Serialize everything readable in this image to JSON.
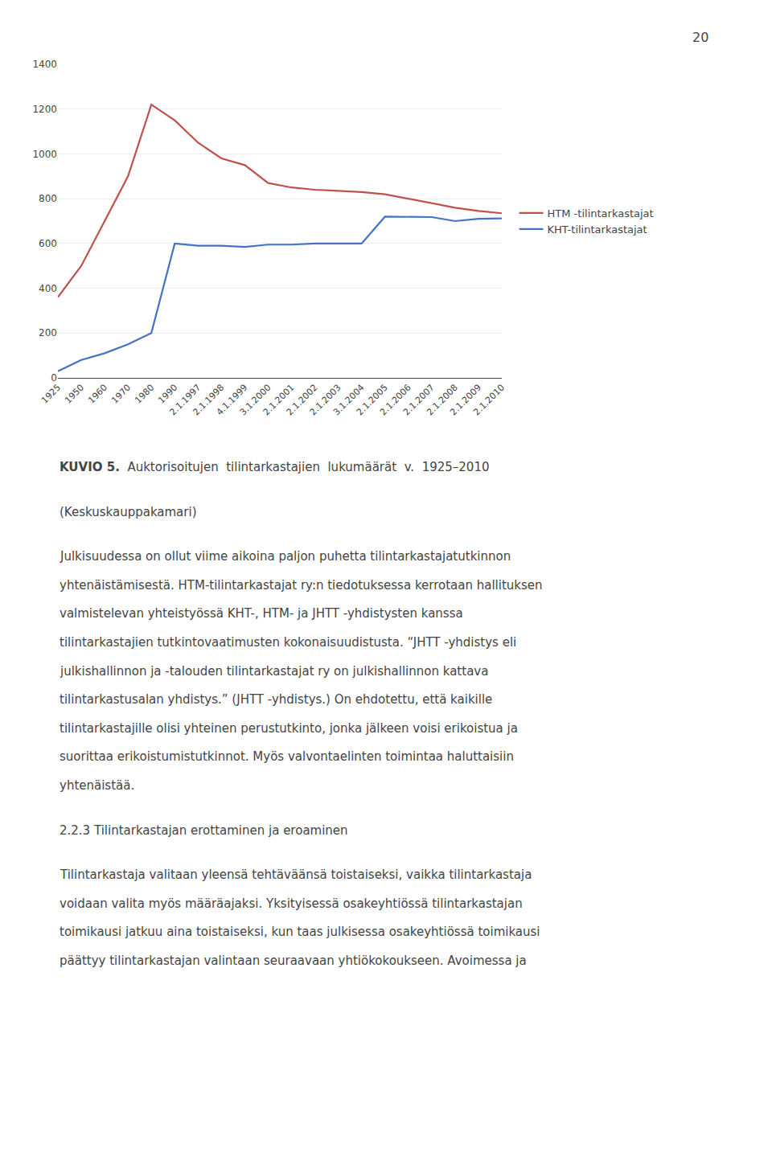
{
  "chart_data": {
    "type": "line",
    "categories": [
      "1925",
      "1950",
      "1960",
      "1970",
      "1980",
      "1990",
      "2.1.1997",
      "2.1.1998",
      "4.1.1999",
      "3.1.2000",
      "2.1.2001",
      "2.1.2002",
      "2.1.2003",
      "3.1.2004",
      "2.1.2005",
      "2.1.2006",
      "2.1.2007",
      "2.1.2008",
      "2.1.2009",
      "2.1.2010"
    ],
    "series": [
      {
        "name": "HTM -tilintarkastajat",
        "color": "#C0504D",
        "values": [
          360,
          500,
          700,
          900,
          1220,
          1150,
          1050,
          980,
          950,
          870,
          850,
          840,
          835,
          830,
          820,
          800,
          780,
          760,
          745,
          735
        ]
      },
      {
        "name": "KHT-tilintarkastajat",
        "color": "#4472C4",
        "values": [
          30,
          80,
          110,
          150,
          200,
          600,
          590,
          590,
          585,
          595,
          595,
          600,
          600,
          600,
          720,
          720,
          718,
          700,
          710,
          712
        ]
      }
    ],
    "ylim": [
      0,
      1400
    ],
    "yticks": [
      0,
      200,
      400,
      600,
      800,
      1000,
      1200,
      1400
    ],
    "grid": true,
    "legend": "right",
    "annotations": [
      [
        "20"
      ],
      [
        "KUVIO 5.",
        "  Auktorisoitujen  tilintarkastajien  lukumäärät  v.  1925–2010"
      ],
      [
        "(Keskuskauppakamari)"
      ],
      [
        "Julkisuudessa on ollut viime aikoina paljon puhetta tilintarkastajatutkinnon",
        "yhtenäistämisestä. HTM-tilintarkastajat ry:n tiedotuksessa kerrotaan hallituksen",
        "valmistelevan yhteistyössä KHT-, HTM- ja JHTT -yhdistysten kanssa",
        "tilintarkastajien tutkintovaatimusten kokonaisuudistusta. “JHTT -yhdistys eli",
        "julkishallinnon ja -talouden tilintarkastajat ry on julkishallinnon kattava",
        "tilintarkastusalan yhdistys.” (JHTT -yhdistys.) On ehdotettu, että kaikille",
        "tilintarkastajille olisi yhteinen perustutkinto, jonka jälkeen voisi erikoistua ja",
        "suorittaa erikoistumistutkinnot. Myös valvontaelinten toimintaa haluttaisiin",
        "yhtenäistää."
      ],
      [
        "2.2.3 Tilintarkastajan erottaminen ja eroaminen"
      ],
      [
        "Tilintarkastaja valitaan yleensä tehtäväänsä toistaiseksi, vaikka tilintarkastaja",
        "voidaan valita myös määräajaksi. Yksityisessä osakeyhtiössä tilintarkastajan",
        "toimikausi jatkuu aina toistaiseksi, kun taas julkisessa osakeyhtiössä toimikausi",
        "päättyy tilintarkastajan valintaan seuraavaan yhtiökokoukseen. Avoimessa ja"
      ]
    ]
  }
}
